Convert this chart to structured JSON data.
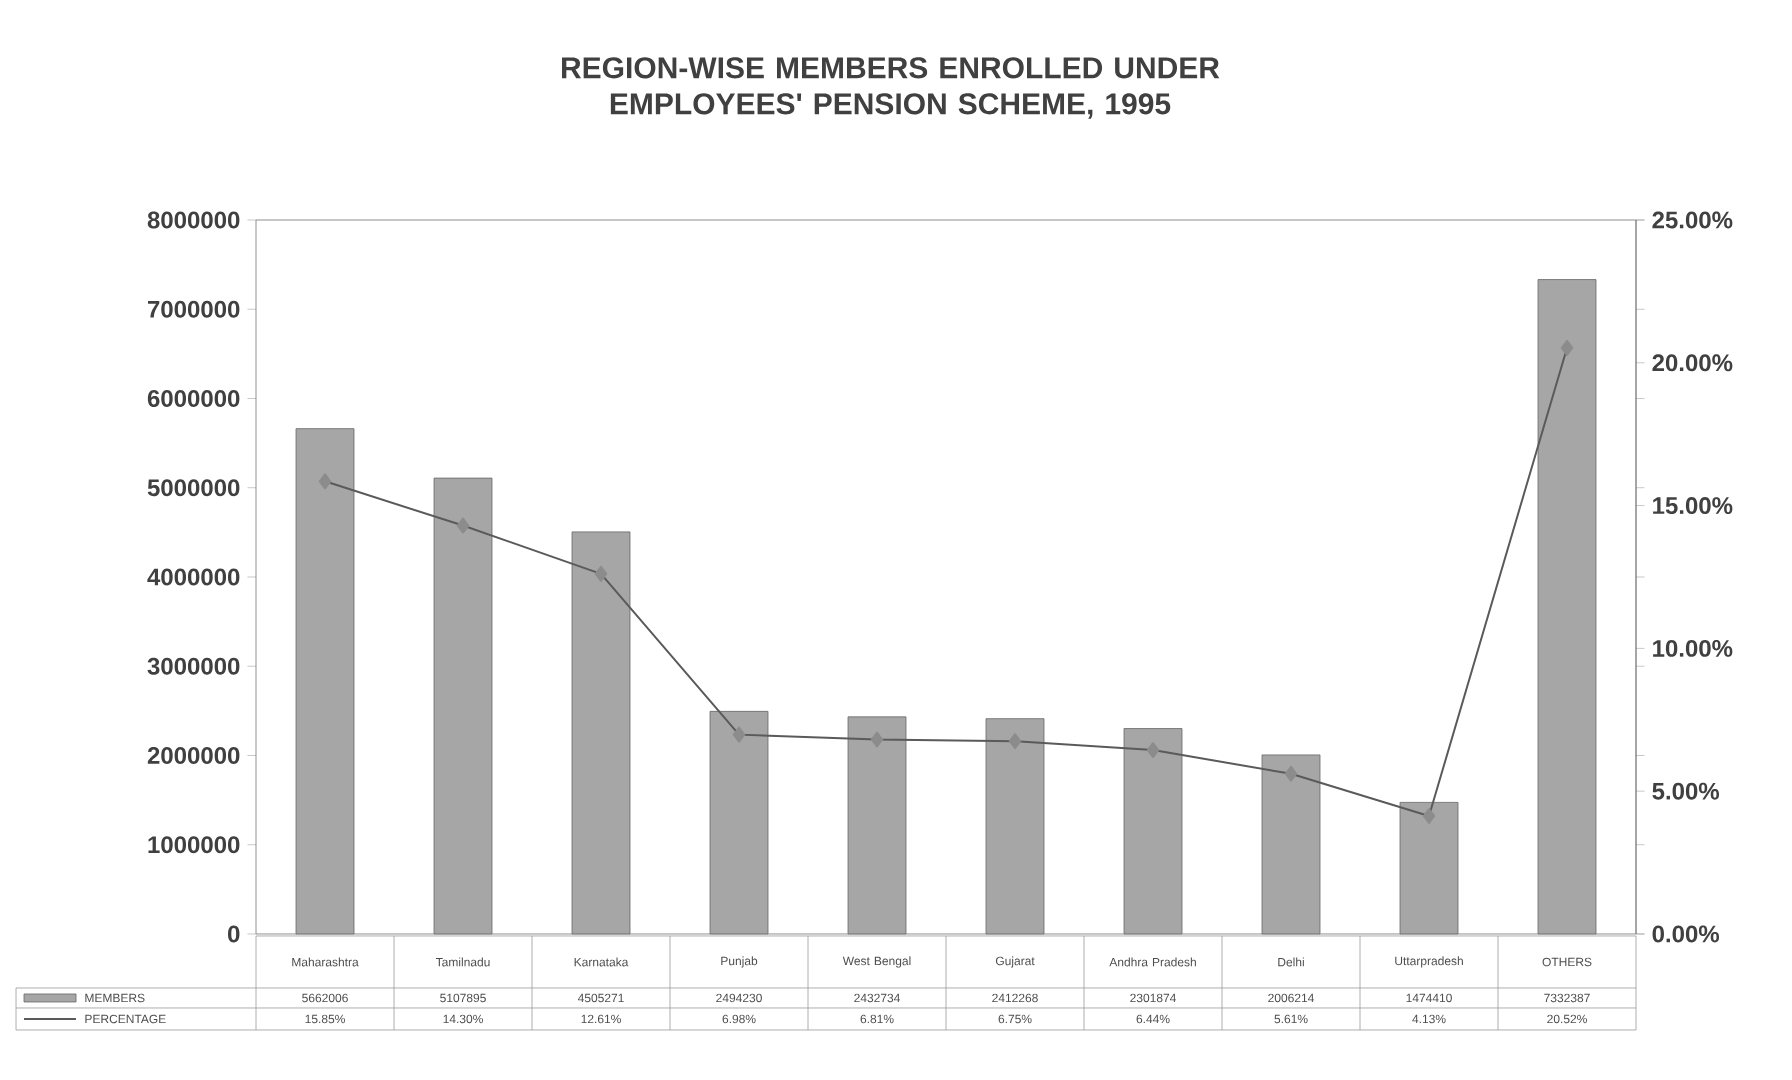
{
  "chart_data": {
    "type": "bar",
    "title": "REGION-WISE MEMBERS ENROLLED UNDER EMPLOYEES' PENSION SCHEME, 1995",
    "categories": [
      "Maharashtra",
      "Tamilnadu",
      "Karnataka",
      "Punjab",
      "West Bengal",
      "Gujarat",
      "Andhra Pradesh",
      "Delhi",
      "Uttarpradesh",
      "OTHERS"
    ],
    "series": [
      {
        "name": "MEMBERS",
        "color": "#a6a6a6",
        "values": [
          5662006,
          5107895,
          4505271,
          2494230,
          2432734,
          2412268,
          2301874,
          2006214,
          1474410,
          7332387
        ],
        "value_labels": [
          "5662006",
          "5107895",
          "4505271",
          "2494230",
          "2432734",
          "2412268",
          "2301874",
          "2006214",
          "1474410",
          "7332387"
        ]
      },
      {
        "name": "PERCENTAGE",
        "type": "line",
        "axis": "y2",
        "color": "#5a5a5a",
        "marker": "diamond",
        "values": [
          15.85,
          14.3,
          12.61,
          6.98,
          6.81,
          6.75,
          6.44,
          5.61,
          4.13,
          20.52
        ],
        "value_labels": [
          "15.85%",
          "14.30%",
          "12.61%",
          "6.98%",
          "6.81%",
          "6.75%",
          "6.44%",
          "5.61%",
          "4.13%",
          "20.52%"
        ]
      }
    ],
    "ylim": [
      0,
      8000000
    ],
    "yticks": [
      0,
      1000000,
      2000000,
      3000000,
      4000000,
      5000000,
      6000000,
      7000000,
      8000000
    ],
    "y2lim": [
      0,
      25
    ],
    "y2ticks": [
      {
        "value": 0,
        "label": "0.00%"
      },
      {
        "value": 5,
        "label": "5.00%"
      },
      {
        "value": 10,
        "label": "10.00%"
      },
      {
        "value": 15,
        "label": "15.00%"
      },
      {
        "value": 20,
        "label": "20.00%"
      },
      {
        "value": 25,
        "label": "25.00%"
      }
    ],
    "grid": false,
    "legend": "bottom"
  }
}
